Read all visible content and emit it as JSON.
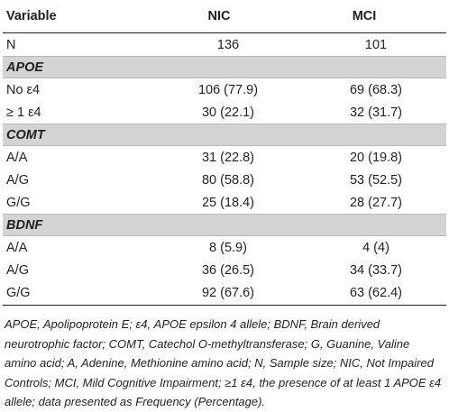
{
  "header": {
    "variable": "Variable",
    "nic": "NIC",
    "mci": "MCI"
  },
  "rows": [
    {
      "type": "data",
      "label": "N",
      "nic": "136",
      "mci": "101"
    },
    {
      "type": "section",
      "label": "APOE"
    },
    {
      "type": "data",
      "label": "No ε4",
      "nic": "106 (77.9)",
      "mci": "69 (68.3)"
    },
    {
      "type": "data",
      "label": "≥ 1 ε4",
      "nic": "30 (22.1)",
      "mci": "32 (31.7)"
    },
    {
      "type": "section",
      "label": "COMT"
    },
    {
      "type": "data",
      "label": "A/A",
      "nic": "31 (22.8)",
      "mci": "20 (19.8)"
    },
    {
      "type": "data",
      "label": "A/G",
      "nic": "80 (58.8)",
      "mci": "53 (52.5)"
    },
    {
      "type": "data",
      "label": "G/G",
      "nic": "25 (18.4)",
      "mci": "28 (27.7)"
    },
    {
      "type": "section",
      "label": "BDNF"
    },
    {
      "type": "data",
      "label": "A/A",
      "nic": "8 (5.9)",
      "mci": "4 (4)"
    },
    {
      "type": "data",
      "label": "A/G",
      "nic": "36 (26.5)",
      "mci": "34 (33.7)"
    },
    {
      "type": "data",
      "label": "G/G",
      "nic": "92 (67.6)",
      "mci": "63 (62.4)"
    }
  ],
  "footnote": "APOE, Apolipoprotein E; ε4, APOE epsilon 4 allele; BDNF, Brain derived neurotrophic factor; COMT, Catechol O-methyltransferase; G, Guanine, Valine amino acid; A, Adenine, Methionine amino acid; N, Sample size; NIC, Not Impaired Controls; MCI, Mild Cognitive Impairment; ≥1 ε4, the presence of at least 1 APOE ε4 allele; data presented as Frequency (Percentage).",
  "colors": {
    "section_band": "#d4d4d6",
    "text": "#231f20"
  }
}
